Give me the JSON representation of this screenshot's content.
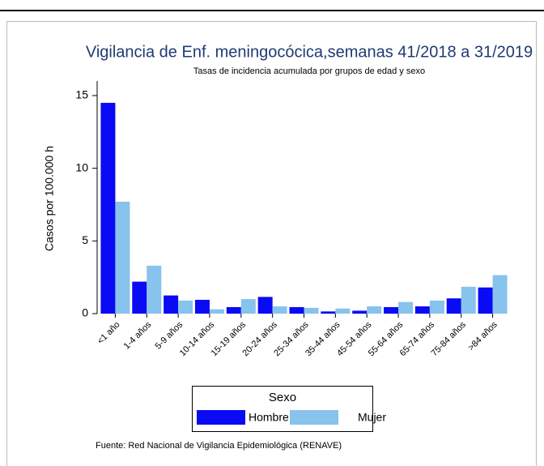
{
  "chart_data": {
    "type": "bar",
    "title": "Vigilancia de Enf. meningocócica,semanas 41/2018 a 31/2019",
    "subtitle": "Tasas de incidencia acumulada por grupos de edad y sexo",
    "y_label": "Casos por 100.000 h",
    "categories": [
      "<1 año",
      "1-4 años",
      "5-9 años",
      "10-14 años",
      "15-19 años",
      "20-24 años",
      "25-34 años",
      "35-44 años",
      "45-54 años",
      "55-64 años",
      "65-74 años",
      "75-84 años",
      ">84 años"
    ],
    "series": [
      {
        "name": "Hombre",
        "color": "#0a0af5",
        "values": [
          14.5,
          2.2,
          1.25,
          0.95,
          0.45,
          1.15,
          0.45,
          0.15,
          0.2,
          0.45,
          0.5,
          1.05,
          1.8
        ]
      },
      {
        "name": "Mujer",
        "color": "#87c3ec",
        "values": [
          7.7,
          3.3,
          0.9,
          0.3,
          1.0,
          0.5,
          0.4,
          0.35,
          0.5,
          0.8,
          0.9,
          1.85,
          2.65
        ]
      }
    ],
    "ylim": [
      0,
      16
    ],
    "yticks": [
      0,
      5,
      10,
      15
    ],
    "legend_title": "Sexo",
    "source": "Fuente: Red Nacional de Vigilancia Epidemiológica (RENAVE)"
  }
}
